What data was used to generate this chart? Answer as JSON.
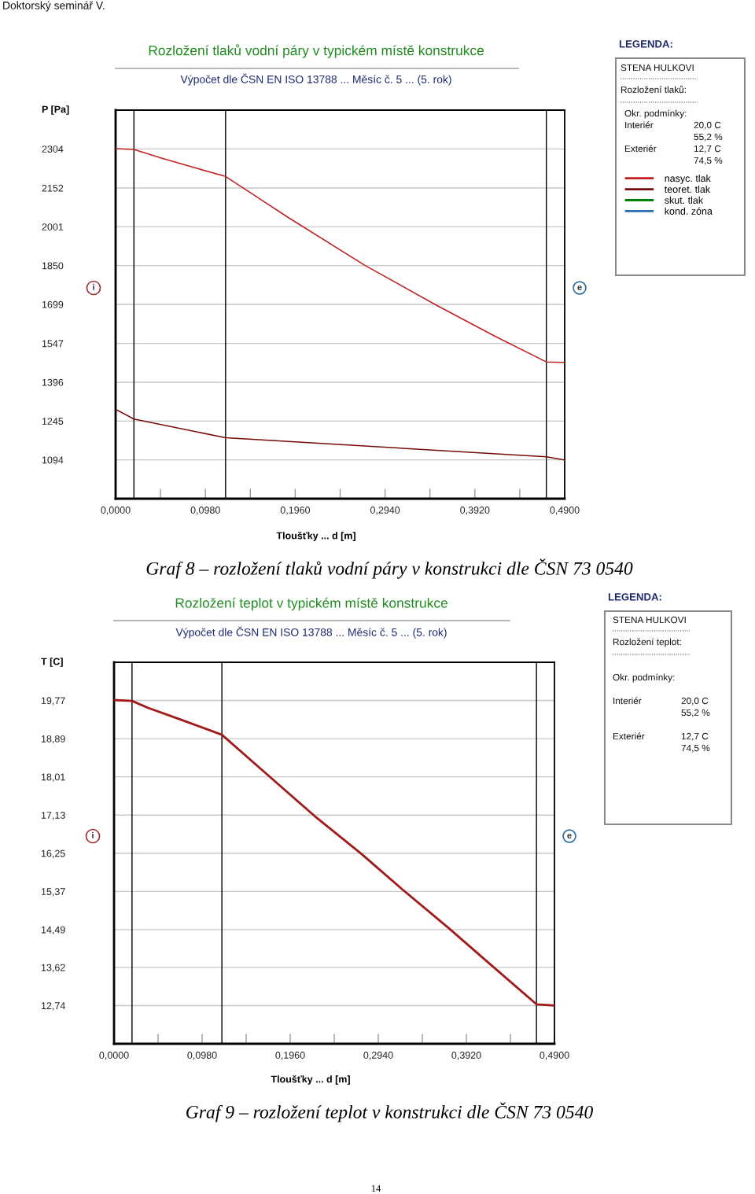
{
  "chart_data": [
    {
      "type": "line",
      "title": "Rozložení tlaků vodní páry v typickém místě konstrukce",
      "subtitle": "Výpočet dle ČSN EN ISO 13788 ... Měsíc č. 5 ... (5. rok)",
      "xlabel": "Tloušťky ... d [m]",
      "ylabel": "P [Pa]",
      "legend_title": "LEGENDA:",
      "series": [
        {
          "name": "nasyc. tlak",
          "color": "#c02020",
          "x": [
            0,
            0.02,
            0.05,
            0.088,
            0.12,
            0.188,
            0.272,
            0.35,
            0.414,
            0.47,
            0.49
          ],
          "values": [
            2305,
            2302,
            2268,
            2229,
            2197,
            2038,
            1851,
            1696,
            1575,
            1475,
            1473
          ]
        },
        {
          "name": "teoret. tlak",
          "color": "#7a0a0a",
          "x": [
            0,
            0.02,
            0.12,
            0.47,
            0.49
          ],
          "values": [
            1291,
            1253,
            1180,
            1106,
            1094
          ]
        },
        {
          "name": "skut. tlak",
          "color": "#008000"
        },
        {
          "name": "kond. zóna",
          "color": "#2a6fb0"
        }
      ],
      "xlim": [
        0,
        0.49
      ],
      "xticks": [
        {
          "value": 0,
          "label": "0,0000"
        },
        {
          "value": 0.049,
          "label": null
        },
        {
          "value": 0.098,
          "label": "0,0980"
        },
        {
          "value": 0.147,
          "label": null
        },
        {
          "value": 0.196,
          "label": "0,1960"
        },
        {
          "value": 0.245,
          "label": null
        },
        {
          "value": 0.294,
          "label": "0,2940"
        },
        {
          "value": 0.343,
          "label": null
        },
        {
          "value": 0.392,
          "label": "0,3920"
        },
        {
          "value": 0.441,
          "label": null
        },
        {
          "value": 0.49,
          "label": "0,4900"
        }
      ],
      "ylim": [
        943,
        2455
      ],
      "yticks": [
        1094,
        1245,
        1396,
        1547,
        1699,
        1850,
        2001,
        2152,
        2304
      ],
      "grid": "y",
      "legend": "right",
      "ref_lines": [
        {
          "axis": "x",
          "value": 0.02,
          "color": "#000000"
        },
        {
          "axis": "x",
          "value": 0.12,
          "color": "#000000"
        },
        {
          "axis": "x",
          "value": 0.47,
          "color": "#000000"
        }
      ],
      "annotations": [
        "Doktorský seminář V.",
        "i",
        "e",
        "STENA HULKOVI",
        "Rozložení tlaků:",
        "Okr. podmínky:",
        "Interiér",
        "20,0 C",
        "55,2 %",
        "Exteriér",
        "12,7 C",
        "74,5 %",
        "Graf 8 – rozložení tlaků vodní páry v konstrukci dle ČSN 73 0540"
      ]
    },
    {
      "type": "line",
      "title": "Rozložení teplot v typickém místě konstrukce",
      "subtitle": "Výpočet dle ČSN EN ISO 13788 ... Měsíc č. 5 ... (5. rok)",
      "xlabel": "Tloušťky ... d [m]",
      "ylabel": "T [C]",
      "series": [
        {
          "color": "#a11a1a",
          "x": [
            0,
            0.02,
            0.038,
            0.07,
            0.12,
            0.164,
            0.223,
            0.275,
            0.32,
            0.372,
            0.417,
            0.47,
            0.49
          ],
          "values": [
            19.78,
            19.76,
            19.6,
            19.36,
            18.98,
            18.18,
            17.11,
            16.24,
            15.43,
            14.53,
            13.72,
            12.77,
            12.74
          ]
        }
      ],
      "xlim": [
        0,
        0.49
      ],
      "xticks": [
        {
          "value": 0,
          "label": "0,0000"
        },
        {
          "value": 0.049,
          "label": null
        },
        {
          "value": 0.098,
          "label": "0,0980"
        },
        {
          "value": 0.147,
          "label": null
        },
        {
          "value": 0.196,
          "label": "0,1960"
        },
        {
          "value": 0.245,
          "label": null
        },
        {
          "value": 0.294,
          "label": "0,2940"
        },
        {
          "value": 0.343,
          "label": null
        },
        {
          "value": 0.392,
          "label": "0,3920"
        },
        {
          "value": 0.441,
          "label": null
        },
        {
          "value": 0.49,
          "label": "0,4900"
        }
      ],
      "ylim": [
        11.86,
        20.65
      ],
      "yticks": [
        {
          "value": 12.74,
          "label": "12,74"
        },
        {
          "value": 13.62,
          "label": "13,62"
        },
        {
          "value": 14.49,
          "label": "14,49"
        },
        {
          "value": 15.37,
          "label": "15,37"
        },
        {
          "value": 16.25,
          "label": "16,25"
        },
        {
          "value": 17.13,
          "label": "17,13"
        },
        {
          "value": 18.01,
          "label": "18,01"
        },
        {
          "value": 18.89,
          "label": "18,89"
        },
        {
          "value": 19.77,
          "label": "19,77"
        }
      ],
      "grid": "y",
      "ref_lines": [
        {
          "axis": "x",
          "value": 0.02,
          "color": "#000000"
        },
        {
          "axis": "x",
          "value": 0.12,
          "color": "#000000"
        },
        {
          "axis": "x",
          "value": 0.47,
          "color": "#000000"
        }
      ],
      "annotations": [
        "i",
        "e",
        "LEGENDA:",
        "STENA HULKOVI",
        "Rozložení teplot:",
        "Okr. podmínky:",
        "Interiér",
        "20,0 C",
        "55,2 %",
        "Exteriér",
        "12,7 C",
        "74,5 %",
        "Graf 9 – rozložení teplot v konstrukci dle ČSN 73 0540",
        "14"
      ]
    }
  ]
}
